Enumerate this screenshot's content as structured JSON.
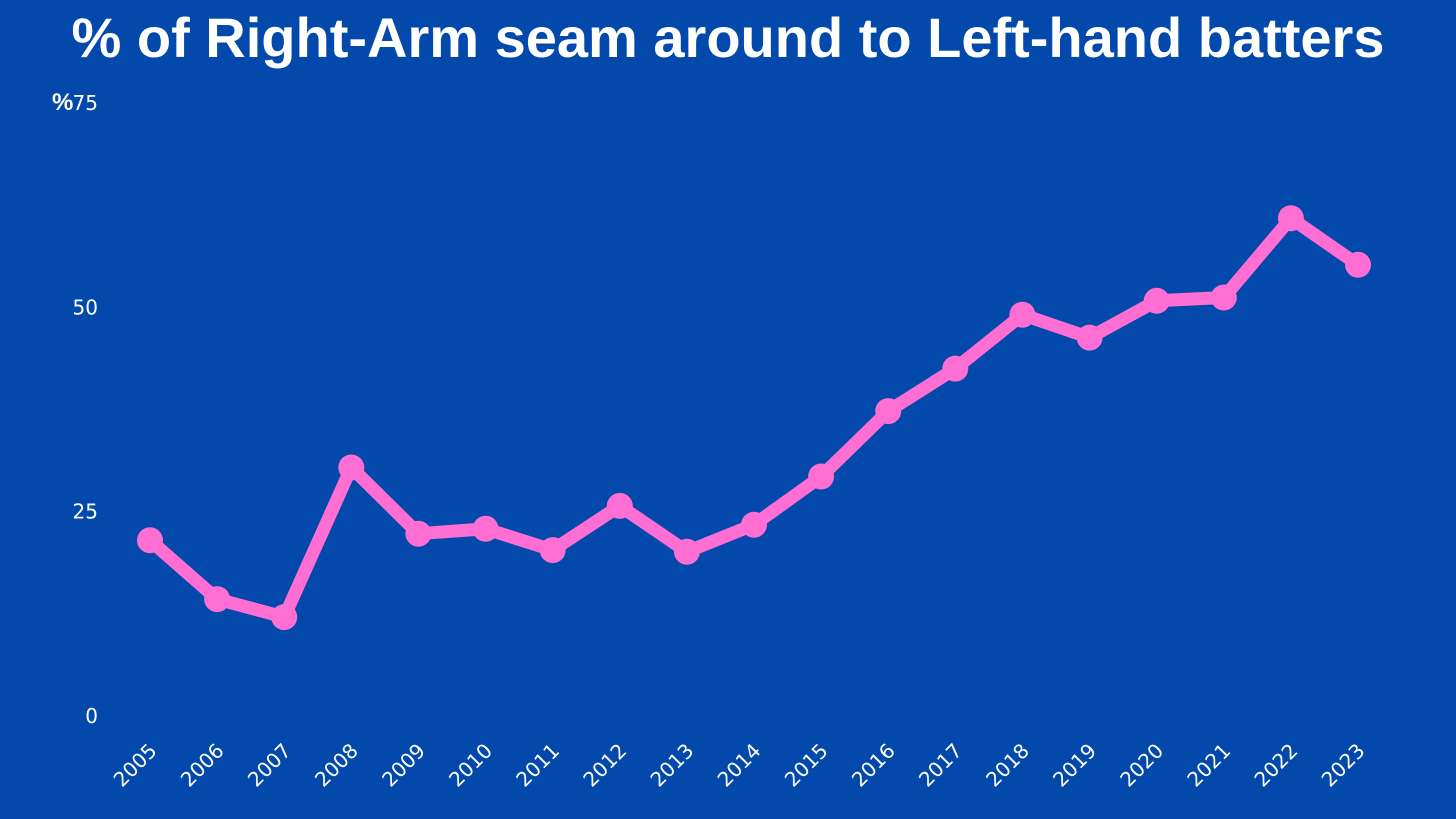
{
  "colors": {
    "background": "#0349ab",
    "line": "#ff6ed2",
    "text": "#ffffff"
  },
  "chart_data": {
    "type": "line",
    "title": "% of Right-Arm seam around to Left-hand batters",
    "ylabel": "%",
    "xlabel": "",
    "ylim": [
      0,
      75
    ],
    "yticks": [
      0,
      25,
      50,
      75
    ],
    "grid": false,
    "x": [
      "2005",
      "2006",
      "2007",
      "2008",
      "2009",
      "2010",
      "2011",
      "2012",
      "2013",
      "2014",
      "2015",
      "2016",
      "2017",
      "2018",
      "2019",
      "2020",
      "2021",
      "2022",
      "2023"
    ],
    "series": [
      {
        "values": [
          21.5,
          14.3,
          12.1,
          30.4,
          22.3,
          22.9,
          20.3,
          25.7,
          20.1,
          23.4,
          29.3,
          37.3,
          42.5,
          49.1,
          46.3,
          50.8,
          51.2,
          60.9,
          55.2
        ]
      }
    ]
  }
}
